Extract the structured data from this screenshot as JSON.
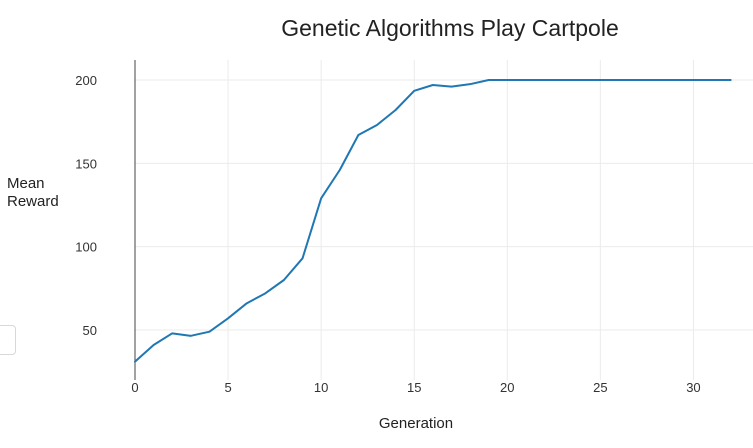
{
  "chart_data": {
    "type": "line",
    "title": "Genetic Algorithms Play Cartpole",
    "xlabel": "Generation",
    "ylabel": "Mean Reward",
    "xlim": [
      0,
      33.2
    ],
    "ylim": [
      20,
      212
    ],
    "xticks": [
      0,
      5,
      10,
      15,
      20,
      25,
      30
    ],
    "yticks": [
      50,
      100,
      150,
      200
    ],
    "grid": true,
    "legend": "none",
    "series": [
      {
        "color": "#1f77b4",
        "x": [
          0,
          1,
          2,
          3,
          4,
          5,
          6,
          7,
          8,
          9,
          10,
          11,
          12,
          13,
          14,
          15,
          16,
          17,
          18,
          19,
          20,
          21,
          22,
          23,
          24,
          25,
          26,
          27,
          28,
          29,
          30,
          31,
          32
        ],
        "y": [
          31,
          41,
          48,
          46.5,
          49,
          57,
          66,
          72,
          80,
          93,
          129,
          146,
          167,
          173,
          182,
          193.5,
          197,
          196,
          197.5,
          200,
          200,
          200,
          200,
          200,
          200,
          200,
          200,
          200,
          200,
          200,
          200,
          200,
          200
        ]
      }
    ]
  },
  "colors": {
    "series": "#1f77b4",
    "grid": "#ebebeb",
    "axis": "#444444",
    "background": "#ffffff"
  }
}
